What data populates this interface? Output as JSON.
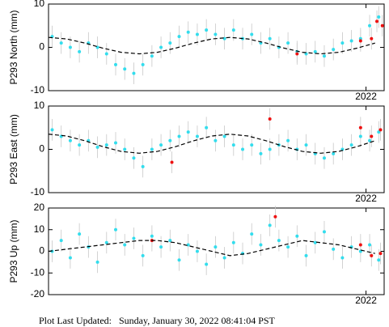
{
  "chart_data": [
    {
      "type": "scatter",
      "ylabel": "P293 North (mm)",
      "xlim": [
        2020.25,
        2022.1
      ],
      "xticks": [
        2022
      ],
      "ylim": [
        -10,
        10
      ],
      "yticks": [
        -10,
        0,
        10
      ],
      "series": [
        {
          "mode": "markers",
          "color": "#33dded",
          "error": 2.5,
          "x": [
            2020.27,
            2020.32,
            2020.37,
            2020.42,
            2020.47,
            2020.52,
            2020.57,
            2020.62,
            2020.67,
            2020.72,
            2020.77,
            2020.82,
            2020.87,
            2020.92,
            2020.97,
            2021.02,
            2021.07,
            2021.12,
            2021.17,
            2021.22,
            2021.27,
            2021.32,
            2021.37,
            2021.42,
            2021.47,
            2021.52,
            2021.57,
            2021.62,
            2021.67,
            2021.72,
            2021.77,
            2021.82,
            2021.87,
            2021.92,
            2021.97,
            2022.02,
            2022.07
          ],
          "values": [
            2.5,
            1,
            0,
            -1,
            1,
            0,
            -1.5,
            -4,
            -5,
            -6,
            -4,
            -2,
            0,
            1,
            2.5,
            3.5,
            3,
            4,
            3,
            2,
            4,
            2,
            3,
            1,
            2,
            0,
            1,
            -1,
            -1.5,
            -1,
            -2,
            -0.5,
            1,
            1.5,
            2,
            5,
            7
          ]
        },
        {
          "mode": "markers",
          "color": "#ee1111",
          "error": 2.5,
          "x": [
            2021.62,
            2021.97,
            2022.03,
            2022.06,
            2022.09
          ],
          "values": [
            -1.5,
            1.5,
            2,
            6,
            5
          ]
        },
        {
          "mode": "dashed",
          "color": "#000000",
          "x": [
            2020.25,
            2020.35,
            2020.45,
            2020.55,
            2020.65,
            2020.75,
            2020.85,
            2020.95,
            2021.05,
            2021.15,
            2021.25,
            2021.35,
            2021.45,
            2021.55,
            2021.65,
            2021.75,
            2021.85,
            2021.95,
            2022.05
          ],
          "values": [
            2.3,
            1.94,
            0.99,
            -0.19,
            -1.14,
            -1.5,
            -1.14,
            -0.19,
            0.99,
            1.94,
            2.3,
            1.94,
            0.99,
            -0.19,
            -1.14,
            -1.5,
            -1.14,
            -0.19,
            0.99
          ]
        }
      ]
    },
    {
      "type": "scatter",
      "ylabel": "P293 East (mm)",
      "xlim": [
        2020.25,
        2022.1
      ],
      "xticks": [
        2022
      ],
      "ylim": [
        -10,
        10
      ],
      "yticks": [
        -10,
        0,
        10
      ],
      "series": [
        {
          "mode": "markers",
          "color": "#33dded",
          "error": 2.5,
          "x": [
            2020.27,
            2020.32,
            2020.37,
            2020.42,
            2020.47,
            2020.52,
            2020.57,
            2020.62,
            2020.67,
            2020.72,
            2020.77,
            2020.82,
            2020.87,
            2020.92,
            2020.97,
            2021.02,
            2021.07,
            2021.12,
            2021.17,
            2021.22,
            2021.27,
            2021.32,
            2021.37,
            2021.42,
            2021.47,
            2021.52,
            2021.57,
            2021.62,
            2021.67,
            2021.72,
            2021.77,
            2021.82,
            2021.87,
            2021.92,
            2021.97,
            2022.02,
            2022.07
          ],
          "values": [
            4.5,
            3,
            2,
            1,
            2,
            0.5,
            1,
            1.5,
            0,
            -2,
            -4,
            0,
            1,
            2,
            3,
            4,
            3,
            5,
            2,
            3,
            1,
            0,
            1,
            -1,
            0,
            1,
            2,
            0,
            1,
            -1,
            -2,
            -1,
            0,
            1,
            3,
            2,
            4
          ]
        },
        {
          "mode": "markers",
          "color": "#ee1111",
          "error": 2.5,
          "x": [
            2020.93,
            2021.47,
            2021.97,
            2022.03,
            2022.08
          ],
          "values": [
            -3,
            7,
            5,
            3,
            4.5
          ]
        },
        {
          "mode": "dashed",
          "color": "#000000",
          "x": [
            2020.25,
            2020.35,
            2020.45,
            2020.55,
            2020.65,
            2020.75,
            2020.85,
            2020.95,
            2021.05,
            2021.15,
            2021.25,
            2021.35,
            2021.45,
            2021.55,
            2021.65,
            2021.75,
            2021.85,
            2021.95,
            2022.05
          ],
          "values": [
            3.5,
            3.08,
            1.98,
            0.62,
            -0.48,
            -0.9,
            -0.48,
            0.62,
            1.98,
            3.08,
            3.5,
            3.08,
            1.98,
            0.62,
            -0.48,
            -0.9,
            -0.48,
            0.62,
            1.98
          ]
        }
      ]
    },
    {
      "type": "scatter",
      "ylabel": "P293 Up (mm)",
      "xlim": [
        2020.25,
        2022.1
      ],
      "xticks": [
        2022
      ],
      "ylim": [
        -20,
        20
      ],
      "yticks": [
        -20,
        -10,
        0,
        10,
        20
      ],
      "series": [
        {
          "mode": "markers",
          "color": "#33dded",
          "error": 5,
          "x": [
            2020.27,
            2020.32,
            2020.37,
            2020.42,
            2020.47,
            2020.52,
            2020.57,
            2020.62,
            2020.67,
            2020.72,
            2020.77,
            2020.82,
            2020.87,
            2020.92,
            2020.97,
            2021.02,
            2021.07,
            2021.12,
            2021.17,
            2021.22,
            2021.27,
            2021.32,
            2021.37,
            2021.42,
            2021.47,
            2021.52,
            2021.57,
            2021.62,
            2021.67,
            2021.72,
            2021.77,
            2021.82,
            2021.87,
            2021.92,
            2021.97,
            2022.02,
            2022.07
          ],
          "values": [
            0,
            5,
            -3,
            8,
            2,
            -5,
            4,
            10,
            3,
            6,
            -2,
            7,
            2,
            5,
            -4,
            3,
            0,
            -6,
            2,
            -3,
            4,
            -1,
            8,
            3,
            12,
            5,
            2,
            7,
            -2,
            4,
            9,
            1,
            -3,
            2,
            0,
            3,
            -4
          ]
        },
        {
          "mode": "markers",
          "color": "#ee1111",
          "error": 5,
          "x": [
            2020.82,
            2021.5,
            2021.97,
            2022.03,
            2022.08
          ],
          "values": [
            5,
            16,
            3,
            -2,
            -1
          ]
        },
        {
          "mode": "dashed",
          "color": "#000000",
          "x": [
            2020.25,
            2020.35,
            2020.45,
            2020.55,
            2020.65,
            2020.75,
            2020.85,
            2020.95,
            2021.05,
            2021.15,
            2021.25,
            2021.35,
            2021.45,
            2021.55,
            2021.65,
            2021.75,
            2021.85,
            2021.95,
            2022.05
          ],
          "values": [
            0,
            1,
            2,
            3,
            4,
            5,
            5,
            4,
            2,
            0,
            -2,
            -1,
            1,
            3,
            5,
            4,
            3,
            1,
            -1
          ]
        }
      ]
    }
  ],
  "footer": "Plot Last Updated:   Sunday, January 30, 2022 08:41:04 PST"
}
